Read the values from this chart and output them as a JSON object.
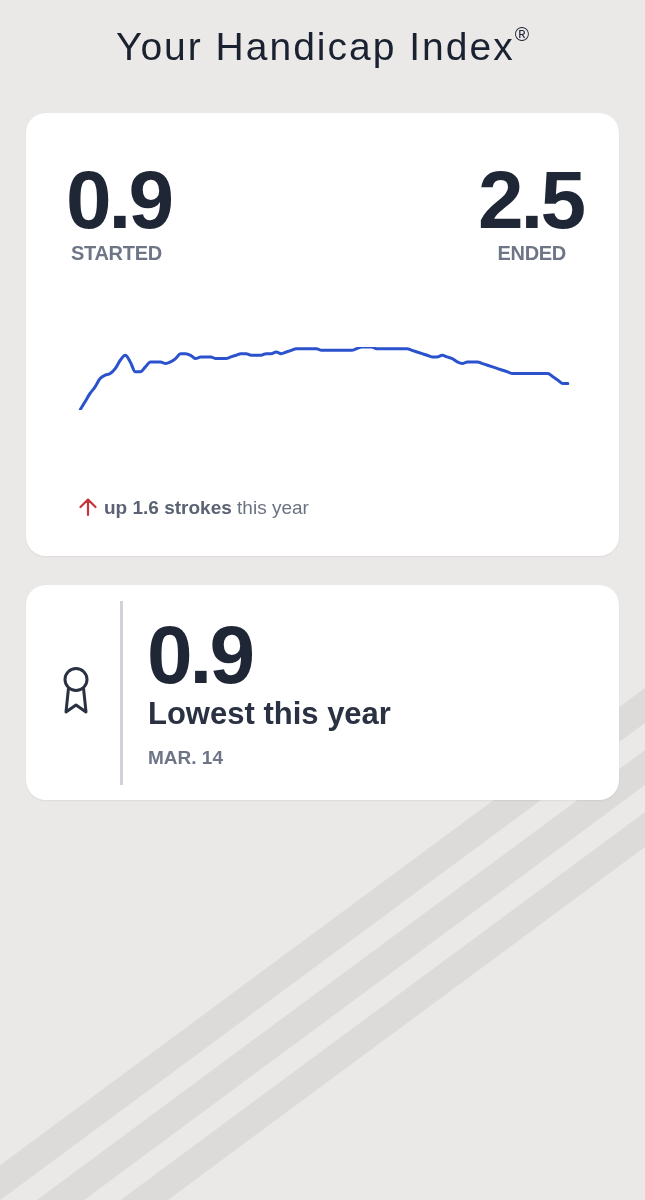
{
  "chart_data": [
    {
      "type": "line",
      "title": "Your Handicap Index$^{®}$",
      "color": "#2a52cc",
      "categories": [
        null,
        null,
        null,
        null,
        null,
        null,
        null,
        null,
        null,
        null,
        null,
        null,
        null,
        null,
        null,
        null,
        null,
        null,
        null,
        null,
        null,
        null,
        null,
        null,
        null,
        null,
        null,
        null,
        null,
        null,
        null,
        null,
        null,
        null,
        null,
        null,
        null,
        null,
        null,
        null,
        null,
        null,
        null,
        null,
        null,
        null,
        null,
        null,
        null,
        null,
        null,
        null,
        null,
        null,
        null,
        null,
        null,
        null,
        null,
        null,
        null,
        null,
        null,
        null,
        null,
        null,
        null,
        null,
        null,
        null,
        null,
        null,
        null,
        null,
        null,
        null,
        null,
        null,
        null,
        null,
        null,
        null,
        null,
        null,
        null,
        null,
        null,
        null,
        null,
        null,
        null,
        null,
        null,
        null,
        null,
        null,
        null,
        null
      ],
      "values": [
        0.9,
        1.4,
        1.9,
        2.3,
        2.8,
        3.0,
        3.1,
        3.4,
        3.9,
        4.2,
        3.8,
        3.2,
        3.2,
        3.5,
        3.8,
        3.8,
        3.8,
        3.7,
        3.8,
        4.0,
        4.3,
        4.3,
        4.2,
        4.0,
        4.1,
        4.1,
        4.1,
        4.0,
        4.0,
        4.0,
        4.1,
        4.2,
        4.3,
        4.3,
        4.2,
        4.2,
        4.2,
        4.3,
        4.3,
        4.4,
        4.3,
        4.4,
        4.5,
        4.6,
        4.6,
        4.6,
        4.6,
        4.6,
        4.5,
        4.5,
        4.5,
        4.5,
        4.5,
        4.5,
        4.5,
        4.6,
        4.7,
        4.7,
        4.7,
        4.6,
        4.6,
        4.6,
        4.6,
        4.6,
        4.6,
        4.6,
        4.5,
        4.4,
        4.3,
        4.2,
        4.1,
        4.1,
        4.2,
        4.1,
        4.0,
        3.8,
        3.7,
        3.8,
        3.8,
        3.8,
        3.7,
        3.6,
        3.5,
        3.4,
        3.3,
        3.2,
        3.1,
        3.1,
        3.1,
        3.1,
        3.1,
        3.1,
        3.1,
        3.1,
        2.9,
        2.7,
        2.5,
        2.5
      ],
      "value_labels": [
        "0.9",
        null,
        null,
        null,
        null,
        null,
        null,
        null,
        null,
        null,
        null,
        null,
        null,
        null,
        null,
        null,
        null,
        null,
        null,
        null,
        null,
        null,
        null,
        null,
        null,
        null,
        null,
        null,
        null,
        null,
        null,
        null,
        null,
        null,
        null,
        null,
        null,
        null,
        null,
        null,
        null,
        null,
        null,
        null,
        null,
        null,
        null,
        null,
        null,
        null,
        null,
        null,
        null,
        null,
        null,
        null,
        null,
        null,
        null,
        null,
        null,
        null,
        null,
        null,
        null,
        null,
        null,
        null,
        null,
        null,
        null,
        null,
        null,
        null,
        null,
        null,
        null,
        null,
        null,
        null,
        null,
        null,
        null,
        null,
        null,
        null,
        null,
        null,
        null,
        null,
        null,
        null,
        null,
        null,
        null,
        null,
        null,
        "2.5"
      ],
      "annotations": [
        "STARTED",
        "ENDED",
        "up 1.6 strokes this year"
      ]
    },
    {
      "type": "other",
      "annotations": [
        "0.9",
        "Lowest this year",
        "MAR. 14"
      ]
    }
  ]
}
